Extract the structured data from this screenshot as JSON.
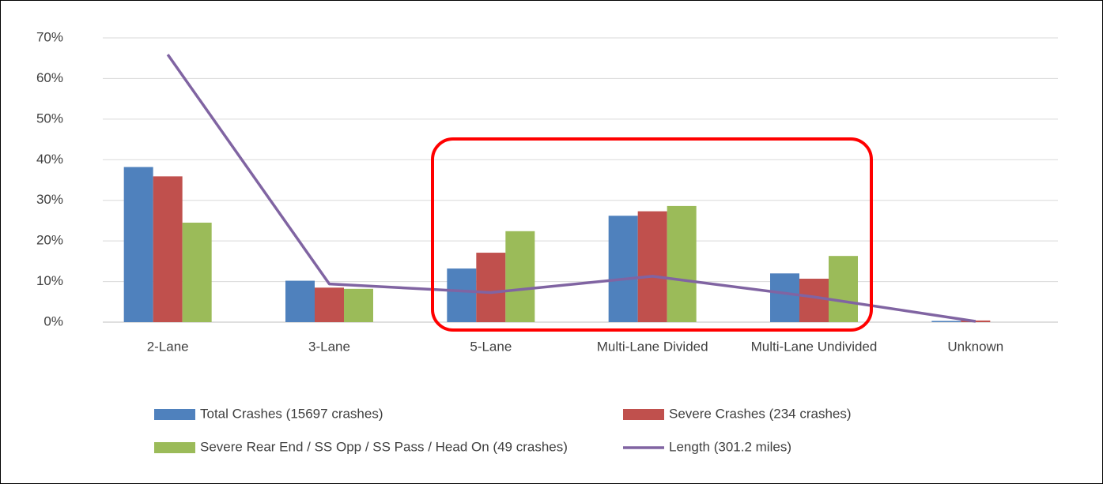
{
  "chart_data": {
    "type": "bar",
    "categories": [
      "2-Lane",
      "3-Lane",
      "5-Lane",
      "Multi-Lane Divided",
      "Multi-Lane Undivided",
      "Unknown"
    ],
    "series": [
      {
        "name": "Total Crashes (15697 crashes)",
        "color": "#4f81bd",
        "values": [
          38.2,
          10.2,
          13.2,
          26.2,
          12.0,
          0.3
        ]
      },
      {
        "name": "Severe Crashes (234 crashes)",
        "color": "#c0504d",
        "values": [
          35.9,
          8.5,
          17.1,
          27.3,
          10.7,
          0.4
        ]
      },
      {
        "name": "Severe Rear End / SS Opp / SS Pass / Head On (49 crashes)",
        "color": "#9bbb59",
        "values": [
          24.5,
          8.2,
          22.4,
          28.6,
          16.3,
          0
        ]
      },
      {
        "name": "Length (301.2 miles)",
        "color": "#8064a2",
        "type": "line",
        "values": [
          65.9,
          9.4,
          7.3,
          11.3,
          6.2,
          0.2
        ]
      }
    ],
    "ylim": [
      0,
      70
    ],
    "yticks": [
      {
        "value": 0,
        "label": "0%"
      },
      {
        "value": 10,
        "label": "10%"
      },
      {
        "value": 20,
        "label": "20%"
      },
      {
        "value": 30,
        "label": "30%"
      },
      {
        "value": 40,
        "label": "40%"
      },
      {
        "value": 50,
        "label": "50%"
      },
      {
        "value": 60,
        "label": "60%"
      },
      {
        "value": 70,
        "label": "70%"
      }
    ],
    "grid": true,
    "legend": "bottom"
  }
}
